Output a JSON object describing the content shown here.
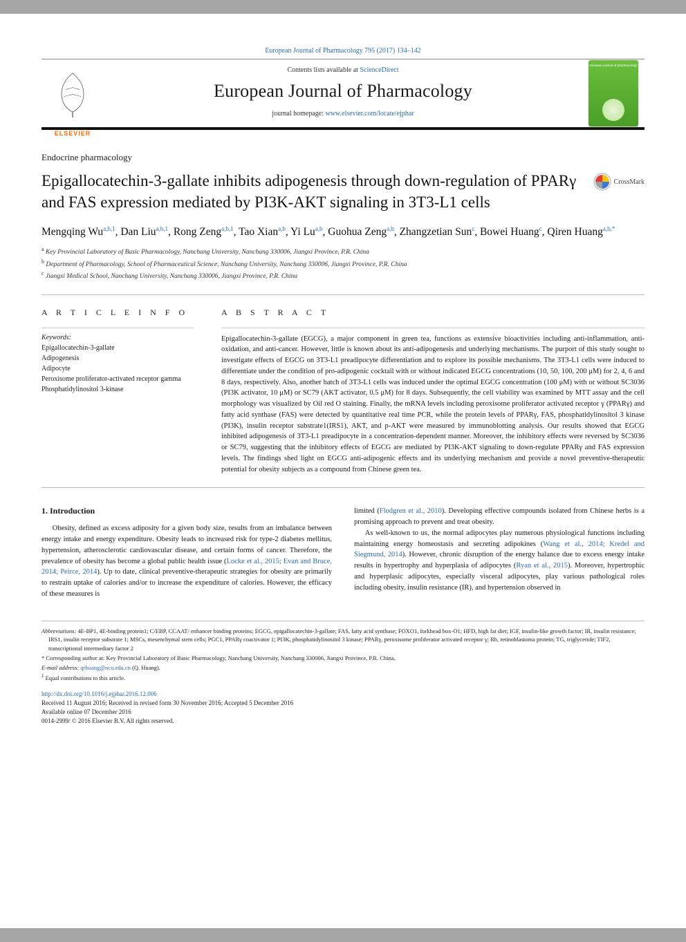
{
  "top_link": "European Journal of Pharmacology 795 (2017) 134–142",
  "masthead": {
    "contents_prefix": "Contents lists available at ",
    "contents_link": "ScienceDirect",
    "journal_name": "European Journal of Pharmacology",
    "homepage_prefix": "journal homepage: ",
    "homepage_link": "www.elsevier.com/locate/ejphar",
    "publisher": "ELSEVIER",
    "cover_text": "european journal of pharmacology"
  },
  "section_label": "Endocrine pharmacology",
  "title": "Epigallocatechin-3-gallate inhibits adipogenesis through down-regulation of PPARγ and FAS expression mediated by PI3K-AKT signaling in 3T3-L1 cells",
  "crossmark_label": "CrossMark",
  "authors_html": "Mengqing Wu<sup>a,b,1</sup>, Dan Liu<sup>a,b,1</sup>, Rong Zeng<sup>a,b,1</sup>, Tao Xian<sup>a,b</sup>, Yi Lu<sup>a,b</sup>, Guohua Zeng<sup>a,b</sup>, Zhangzetian Sun<sup>c</sup>, Bowei Huang<sup>c</sup>, Qiren Huang<sup>a,b,*</sup>",
  "affiliations": [
    {
      "sup": "a",
      "text": "Key Provincial Laboratory of Basic Pharmacology, Nanchang University, Nanchang 330006, Jiangxi Province, P.R. China"
    },
    {
      "sup": "b",
      "text": "Department of Pharmacology, School of Pharmaceutical Science, Nanchang University, Nanchang 330006, Jiangxi Province, P.R. China"
    },
    {
      "sup": "c",
      "text": "Jiangxi Medical School, Nanchang University, Nanchang 330006, Jiangxi Province, P.R. China"
    }
  ],
  "article_info_heading": "A R T I C L E  I N F O",
  "keywords_label": "Keywords:",
  "keywords": [
    "Epigallocatechin-3-gallate",
    "Adipogenesis",
    "Adipocyte",
    "Peroxisome proliferator-activated receptor gamma",
    "Phosphatidylinositol 3-kinase"
  ],
  "abstract_heading": "A B S T R A C T",
  "abstract": "Epigallocatechin-3-gallate (EGCG), a major component in green tea, functions as extensive bioactivities including anti-inflammation, anti-oxidation, and anti-cancer. However, little is known about its anti-adipogenesis and underlying mechanisms. The purport of this study sought to investigate effects of EGCG on 3T3-L1 preadipocyte differentiation and to explore its possible mechanisms. The 3T3-L1 cells were induced to differentiate under the condition of pro-adipogenic cocktail with or without indicated EGCG concentrations (10, 50, 100, 200 μM) for 2, 4, 6 and 8 days, respectively. Also, another batch of 3T3-L1 cells was induced under the optimal EGCG concentration (100 μM) with or without SC3036 (PI3K activator, 10 μM) or SC79 (AKT activator, 0.5 μM) for 8 days. Subsequently, the cell viability was examined by MTT assay and the cell morphology was visualized by Oil red O staining. Finally, the mRNA levels including peroxisome proliferator activated receptor γ (PPARγ) and fatty acid synthase (FAS) were detected by quantitative real time PCR, while the protein levels of PPARγ, FAS, phosphatidylinositol 3 kinase (PI3K), insulin receptor substrate1(IRS1), AKT, and p-AKT were measured by immunoblotting analysis. Our results showed that EGCG inhibited adipogenesis of 3T3-L1 preadipocyte in a concentration-dependent manner. Moreover, the inhibitory effects were reversed by SC3036 or SC79, suggesting that the inhibitory effects of EGCG are mediated by PI3K-AKT signaling to down-regulate PPARγ and FAS expression levels. The findings shed light on EGCG anti-adipogenic effects and its underlying mechanism and provide a novel preventive-therapeutic potential for obesity subjects as a compound from Chinese green tea.",
  "intro_heading": "1. Introduction",
  "intro_p1": "Obesity, defined as excess adiposity for a given body size, results from an imbalance between energy intake and energy expenditure. Obesity leads to increased risk for type-2 diabetes mellitus, hypertension, atherosclerotic cardiovascular disease, and certain forms of cancer. Therefore, the prevalence of obesity has become a global public health issue (",
  "intro_p1_ref": "Locke et al., 2015; Evan and Bruce, 2014; Peirce, 2014",
  "intro_p1_tail": "). Up to date, clinical preventive-therapeutic strategies for obesity are primarily to restrain uptake of calories and/or to increase the expenditure of calories. However, the efficacy of these measures is",
  "intro_p2_lead": "limited (",
  "intro_p2_ref1": "Flodgren et al., 2010",
  "intro_p2_mid": "). Developing effective compounds isolated from Chinese herbs is a promising approach to prevent and treat obesity.",
  "intro_p3_lead": "As well-known to us, the normal adipocytes play numerous physiological functions including maintaining energy homeostasis and secreting adipokines (",
  "intro_p3_ref1": "Wang et al., 2014; Kredel and Siegmund, 2014",
  "intro_p3_mid": "). However, chronic disruption of the energy balance due to excess energy intake results in hypertrophy and hyperplasia of adipocytes (",
  "intro_p3_ref2": "Ryan et al., 2015",
  "intro_p3_tail": "). Moreover, hypertrophic and hyperplasic adipocytes, especially visceral adipocytes, play various pathological roles including obesity, insulin resistance (IR), and hypertension observed in",
  "footnotes": {
    "abbrev_label": "Abbreviations:",
    "abbrev_text": " 4E-BP1, 4E-binding protein1; C/EBP, CCAAT/ enhancer binding proteins; EGCG, epigallocatechin-3-gallate; FAS, fatty acid synthase; FOXO1, forkhead box-O1; HFD, high fat diet; IGF, insulin-like growth factor; IR, insulin resistance; IRS1, insulin receptor substrate 1; MSCs, mesenchymal stem cells; PGC1, PPARγ coactivator 1; PI3K, phosphatidylinositol 3 kinase; PPARγ, peroxisome proliferator activated receptor γ; Rb, retinoblastoma protein; TG, triglyceride; TIF2, transcriptional intermediary factor 2",
    "corr_label": "* Corresponding author at: ",
    "corr_text": "Key Provincial Laboratory of Basic Pharmacology, Nanchang University, Nanchang 330006, Jiangxi Province, P.R. China.",
    "email_label": "E-mail address: ",
    "email_link": "qrhuang@ncu.edu.cn",
    "email_tail": " (Q. Huang).",
    "equal_label": "1",
    "equal_text": " Equal contributions to this article."
  },
  "doi_link": "http://dx.doi.org/10.1016/j.ejphar.2016.12.006",
  "history": [
    "Received 11 August 2016; Received in revised form 30 November 2016; Accepted 5 December 2016",
    "Available online 07 December 2016",
    "0014-2999/ © 2016 Elsevier B.V. All rights reserved."
  ],
  "colors": {
    "link": "#2b6cb0",
    "elsevier_orange": "#ff6a00",
    "cover_green_top": "#6bbf3c",
    "cover_green_bot": "#4a9e28",
    "rule_dark": "#111111",
    "rule_light": "#bbbbbb",
    "page_bg": "#a5a5a5",
    "crossmark_red": "#e43b2f",
    "crossmark_yellow": "#f6c30e",
    "crossmark_blue": "#3b7bd1",
    "crossmark_grey": "#9aa0a6"
  }
}
